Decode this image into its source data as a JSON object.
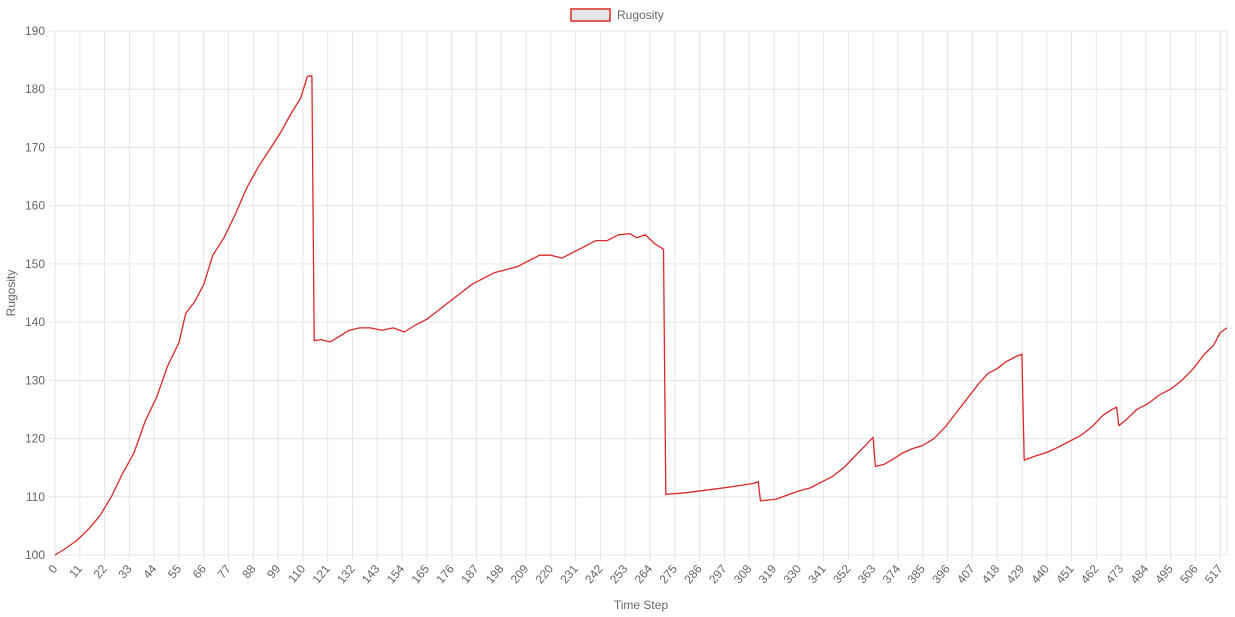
{
  "chart_data": {
    "type": "line",
    "title": "",
    "legend": {
      "position": "top",
      "entries": [
        "Rugosity"
      ]
    },
    "xlabel": "Time Step",
    "ylabel": "Rugosity",
    "ylim": [
      100,
      190
    ],
    "yticks": [
      100,
      110,
      120,
      130,
      140,
      150,
      160,
      170,
      180,
      190
    ],
    "xlim": [
      0,
      520
    ],
    "xticks": [
      0,
      11,
      22,
      33,
      44,
      55,
      66,
      77,
      88,
      99,
      110,
      121,
      132,
      143,
      154,
      165,
      176,
      187,
      198,
      209,
      220,
      231,
      242,
      253,
      264,
      275,
      286,
      297,
      308,
      319,
      330,
      341,
      352,
      363,
      374,
      385,
      396,
      407,
      418,
      429,
      440,
      451,
      462,
      473,
      484,
      495,
      506,
      517
    ],
    "grid": true,
    "colors": {
      "line": "#dc2828",
      "legend_fill": "#e6e6e6",
      "grid": "#e6e6e6",
      "text": "#666666"
    },
    "series": [
      {
        "name": "Rugosity",
        "points": [
          [
            0,
            100.0
          ],
          [
            5,
            101.2
          ],
          [
            10,
            102.6
          ],
          [
            15,
            104.5
          ],
          [
            20,
            106.8
          ],
          [
            25,
            110.0
          ],
          [
            30,
            114.0
          ],
          [
            35,
            117.5
          ],
          [
            40,
            123.0
          ],
          [
            45,
            127.0
          ],
          [
            50,
            132.5
          ],
          [
            55,
            136.5
          ],
          [
            58,
            141.5
          ],
          [
            62,
            143.5
          ],
          [
            66,
            146.5
          ],
          [
            70,
            151.5
          ],
          [
            75,
            154.5
          ],
          [
            80,
            158.5
          ],
          [
            85,
            163.0
          ],
          [
            90,
            166.5
          ],
          [
            95,
            169.5
          ],
          [
            100,
            172.5
          ],
          [
            105,
            176.0
          ],
          [
            109,
            178.5
          ],
          [
            112,
            182.2
          ],
          [
            114,
            182.3
          ],
          [
            115,
            136.8
          ],
          [
            118,
            137.0
          ],
          [
            122,
            136.6
          ],
          [
            126,
            137.5
          ],
          [
            130,
            138.5
          ],
          [
            135,
            139.0
          ],
          [
            140,
            139.0
          ],
          [
            145,
            138.6
          ],
          [
            150,
            139.0
          ],
          [
            155,
            138.3
          ],
          [
            160,
            139.5
          ],
          [
            165,
            140.5
          ],
          [
            170,
            142.0
          ],
          [
            175,
            143.5
          ],
          [
            180,
            145.0
          ],
          [
            185,
            146.5
          ],
          [
            190,
            147.5
          ],
          [
            195,
            148.5
          ],
          [
            200,
            149.0
          ],
          [
            205,
            149.5
          ],
          [
            210,
            150.5
          ],
          [
            215,
            151.5
          ],
          [
            220,
            151.5
          ],
          [
            225,
            151.0
          ],
          [
            230,
            152.0
          ],
          [
            235,
            153.0
          ],
          [
            240,
            154.0
          ],
          [
            245,
            154.0
          ],
          [
            250,
            155.0
          ],
          [
            255,
            155.2
          ],
          [
            258,
            154.5
          ],
          [
            262,
            155.0
          ],
          [
            266,
            153.5
          ],
          [
            270,
            152.5
          ],
          [
            271,
            110.4
          ],
          [
            280,
            110.7
          ],
          [
            290,
            111.2
          ],
          [
            300,
            111.7
          ],
          [
            310,
            112.3
          ],
          [
            312,
            112.6
          ],
          [
            313,
            109.3
          ],
          [
            320,
            109.6
          ],
          [
            325,
            110.3
          ],
          [
            330,
            111.0
          ],
          [
            335,
            111.5
          ],
          [
            340,
            112.5
          ],
          [
            345,
            113.5
          ],
          [
            350,
            115.0
          ],
          [
            355,
            117.0
          ],
          [
            360,
            119.0
          ],
          [
            363,
            120.2
          ],
          [
            364,
            115.2
          ],
          [
            368,
            115.6
          ],
          [
            372,
            116.5
          ],
          [
            376,
            117.5
          ],
          [
            380,
            118.2
          ],
          [
            385,
            118.8
          ],
          [
            390,
            120.0
          ],
          [
            395,
            122.0
          ],
          [
            400,
            124.5
          ],
          [
            405,
            127.0
          ],
          [
            410,
            129.5
          ],
          [
            414,
            131.2
          ],
          [
            418,
            132.0
          ],
          [
            422,
            133.2
          ],
          [
            426,
            134.0
          ],
          [
            429,
            134.5
          ],
          [
            430,
            116.3
          ],
          [
            435,
            117.0
          ],
          [
            440,
            117.6
          ],
          [
            445,
            118.5
          ],
          [
            450,
            119.5
          ],
          [
            455,
            120.5
          ],
          [
            460,
            122.0
          ],
          [
            465,
            124.0
          ],
          [
            469,
            125.0
          ],
          [
            471,
            125.4
          ],
          [
            472,
            122.2
          ],
          [
            476,
            123.5
          ],
          [
            480,
            125.0
          ],
          [
            485,
            126.0
          ],
          [
            490,
            127.5
          ],
          [
            495,
            128.5
          ],
          [
            500,
            130.0
          ],
          [
            505,
            132.0
          ],
          [
            510,
            134.5
          ],
          [
            514,
            136.0
          ],
          [
            517,
            138.2
          ],
          [
            520,
            139.0
          ]
        ]
      }
    ]
  }
}
